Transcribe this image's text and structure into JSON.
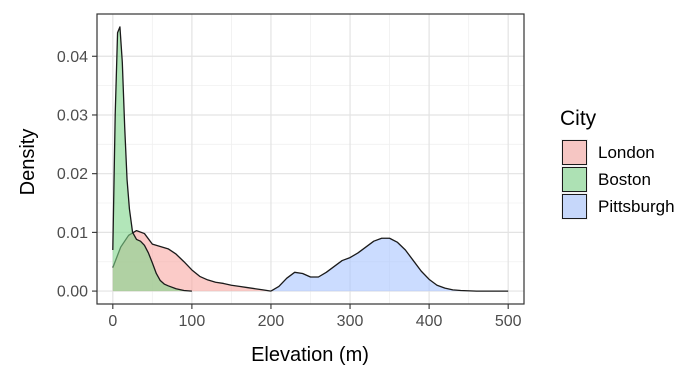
{
  "chart_data": {
    "type": "area",
    "subtype": "density",
    "title": "",
    "xlabel": "Elevation (m)",
    "ylabel": "Density",
    "xlim": [
      -20,
      520
    ],
    "ylim": [
      -0.0022,
      0.0472
    ],
    "x_ticks": [
      0,
      100,
      200,
      300,
      400,
      500
    ],
    "x_tick_labels": [
      "0",
      "100",
      "200",
      "300",
      "400",
      "500"
    ],
    "y_ticks": [
      0.0,
      0.01,
      0.02,
      0.03,
      0.04
    ],
    "y_tick_labels": [
      "0.00",
      "0.01",
      "0.02",
      "0.03",
      "0.04"
    ],
    "grid": true,
    "panel_border": true,
    "legend": {
      "title": "City",
      "position": "right"
    },
    "series": [
      {
        "name": "London",
        "fill_color": "#f8a8a3",
        "x": [
          0,
          10,
          20,
          30,
          40,
          50,
          60,
          70,
          80,
          90,
          100,
          110,
          120,
          130,
          140,
          150,
          160,
          170,
          180,
          190,
          200
        ],
        "y": [
          0.004,
          0.0075,
          0.0095,
          0.0103,
          0.0098,
          0.008,
          0.0076,
          0.0072,
          0.0063,
          0.005,
          0.0036,
          0.0025,
          0.0019,
          0.0015,
          0.0013,
          0.001,
          0.0008,
          0.0006,
          0.0004,
          0.0002,
          0.0
        ]
      },
      {
        "name": "Boston",
        "fill_color": "#7fd68a",
        "x": [
          0,
          3,
          6,
          9,
          12,
          15,
          18,
          21,
          25,
          30,
          35,
          40,
          45,
          50,
          55,
          60,
          65,
          70,
          80,
          90,
          100
        ],
        "y": [
          0.007,
          0.03,
          0.044,
          0.045,
          0.039,
          0.028,
          0.019,
          0.014,
          0.01,
          0.0088,
          0.0085,
          0.0078,
          0.0065,
          0.0048,
          0.003,
          0.0018,
          0.0012,
          0.0009,
          0.0004,
          0.0001,
          0.0
        ]
      },
      {
        "name": "Pittsburgh",
        "fill_color": "#a8c4ff",
        "x": [
          200,
          210,
          220,
          230,
          240,
          250,
          260,
          270,
          280,
          290,
          300,
          310,
          320,
          330,
          340,
          350,
          360,
          370,
          380,
          390,
          400,
          410,
          420,
          430,
          440,
          460,
          480,
          500
        ],
        "y": [
          0.0,
          0.0008,
          0.0022,
          0.0032,
          0.003,
          0.0024,
          0.0024,
          0.0032,
          0.0042,
          0.0052,
          0.0057,
          0.0065,
          0.0075,
          0.0085,
          0.009,
          0.009,
          0.0083,
          0.007,
          0.0052,
          0.0034,
          0.002,
          0.001,
          0.0005,
          0.0002,
          0.0001,
          0.0,
          0.0,
          0.0
        ]
      }
    ]
  }
}
